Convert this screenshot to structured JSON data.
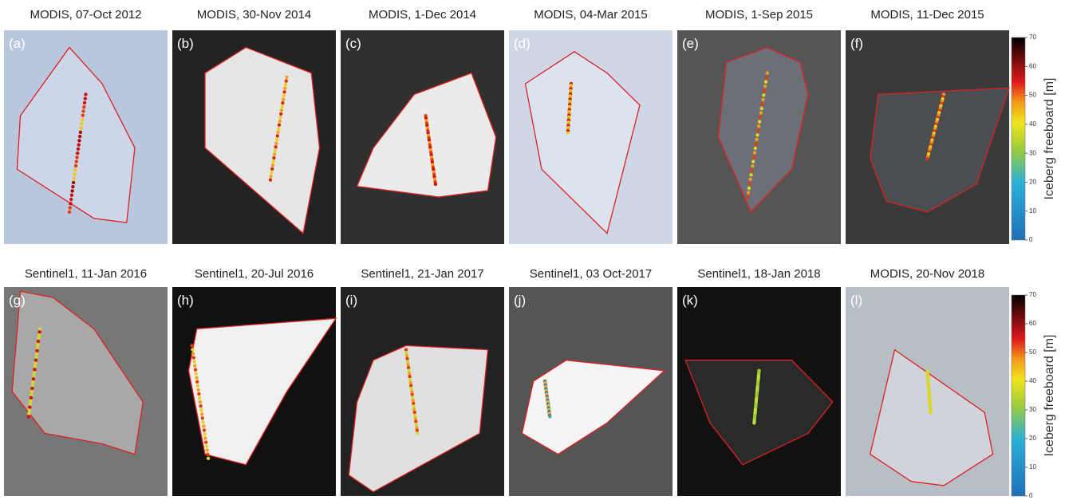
{
  "rows": [
    {
      "panels": [
        {
          "title": "MODIS, 07-Oct 2012",
          "label": "(a)"
        },
        {
          "title": "MODIS, 30-Nov 2014",
          "label": "(b)"
        },
        {
          "title": "MODIS, 1-Dec 2014",
          "label": "(c)"
        },
        {
          "title": "MODIS, 04-Mar 2015",
          "label": "(d)"
        },
        {
          "title": "MODIS, 1-Sep 2015",
          "label": "(e)"
        },
        {
          "title": "MODIS, 11-Dec 2015",
          "label": "(f)"
        }
      ]
    },
    {
      "panels": [
        {
          "title": "Sentinel1, 11-Jan 2016",
          "label": "(g)"
        },
        {
          "title": "Sentinel1, 20-Jul 2016",
          "label": "(h)"
        },
        {
          "title": "Sentinel1, 21-Jan 2017",
          "label": "(i)"
        },
        {
          "title": "Sentinel1, 03 Oct-2017",
          "label": "(j)"
        },
        {
          "title": "Sentinel1, 18-Jan 2018",
          "label": "(k)"
        },
        {
          "title": "MODIS, 20-Nov 2018",
          "label": "(l)"
        }
      ]
    }
  ],
  "colorbars": [
    {
      "ticks": [
        0,
        10,
        20,
        30,
        40,
        50,
        60,
        70
      ],
      "label": "Iceberg freeboard [m]"
    },
    {
      "ticks": [
        0,
        10,
        20,
        30,
        40,
        50,
        60,
        70
      ],
      "label": "Iceberg freeboard [m]"
    }
  ]
}
